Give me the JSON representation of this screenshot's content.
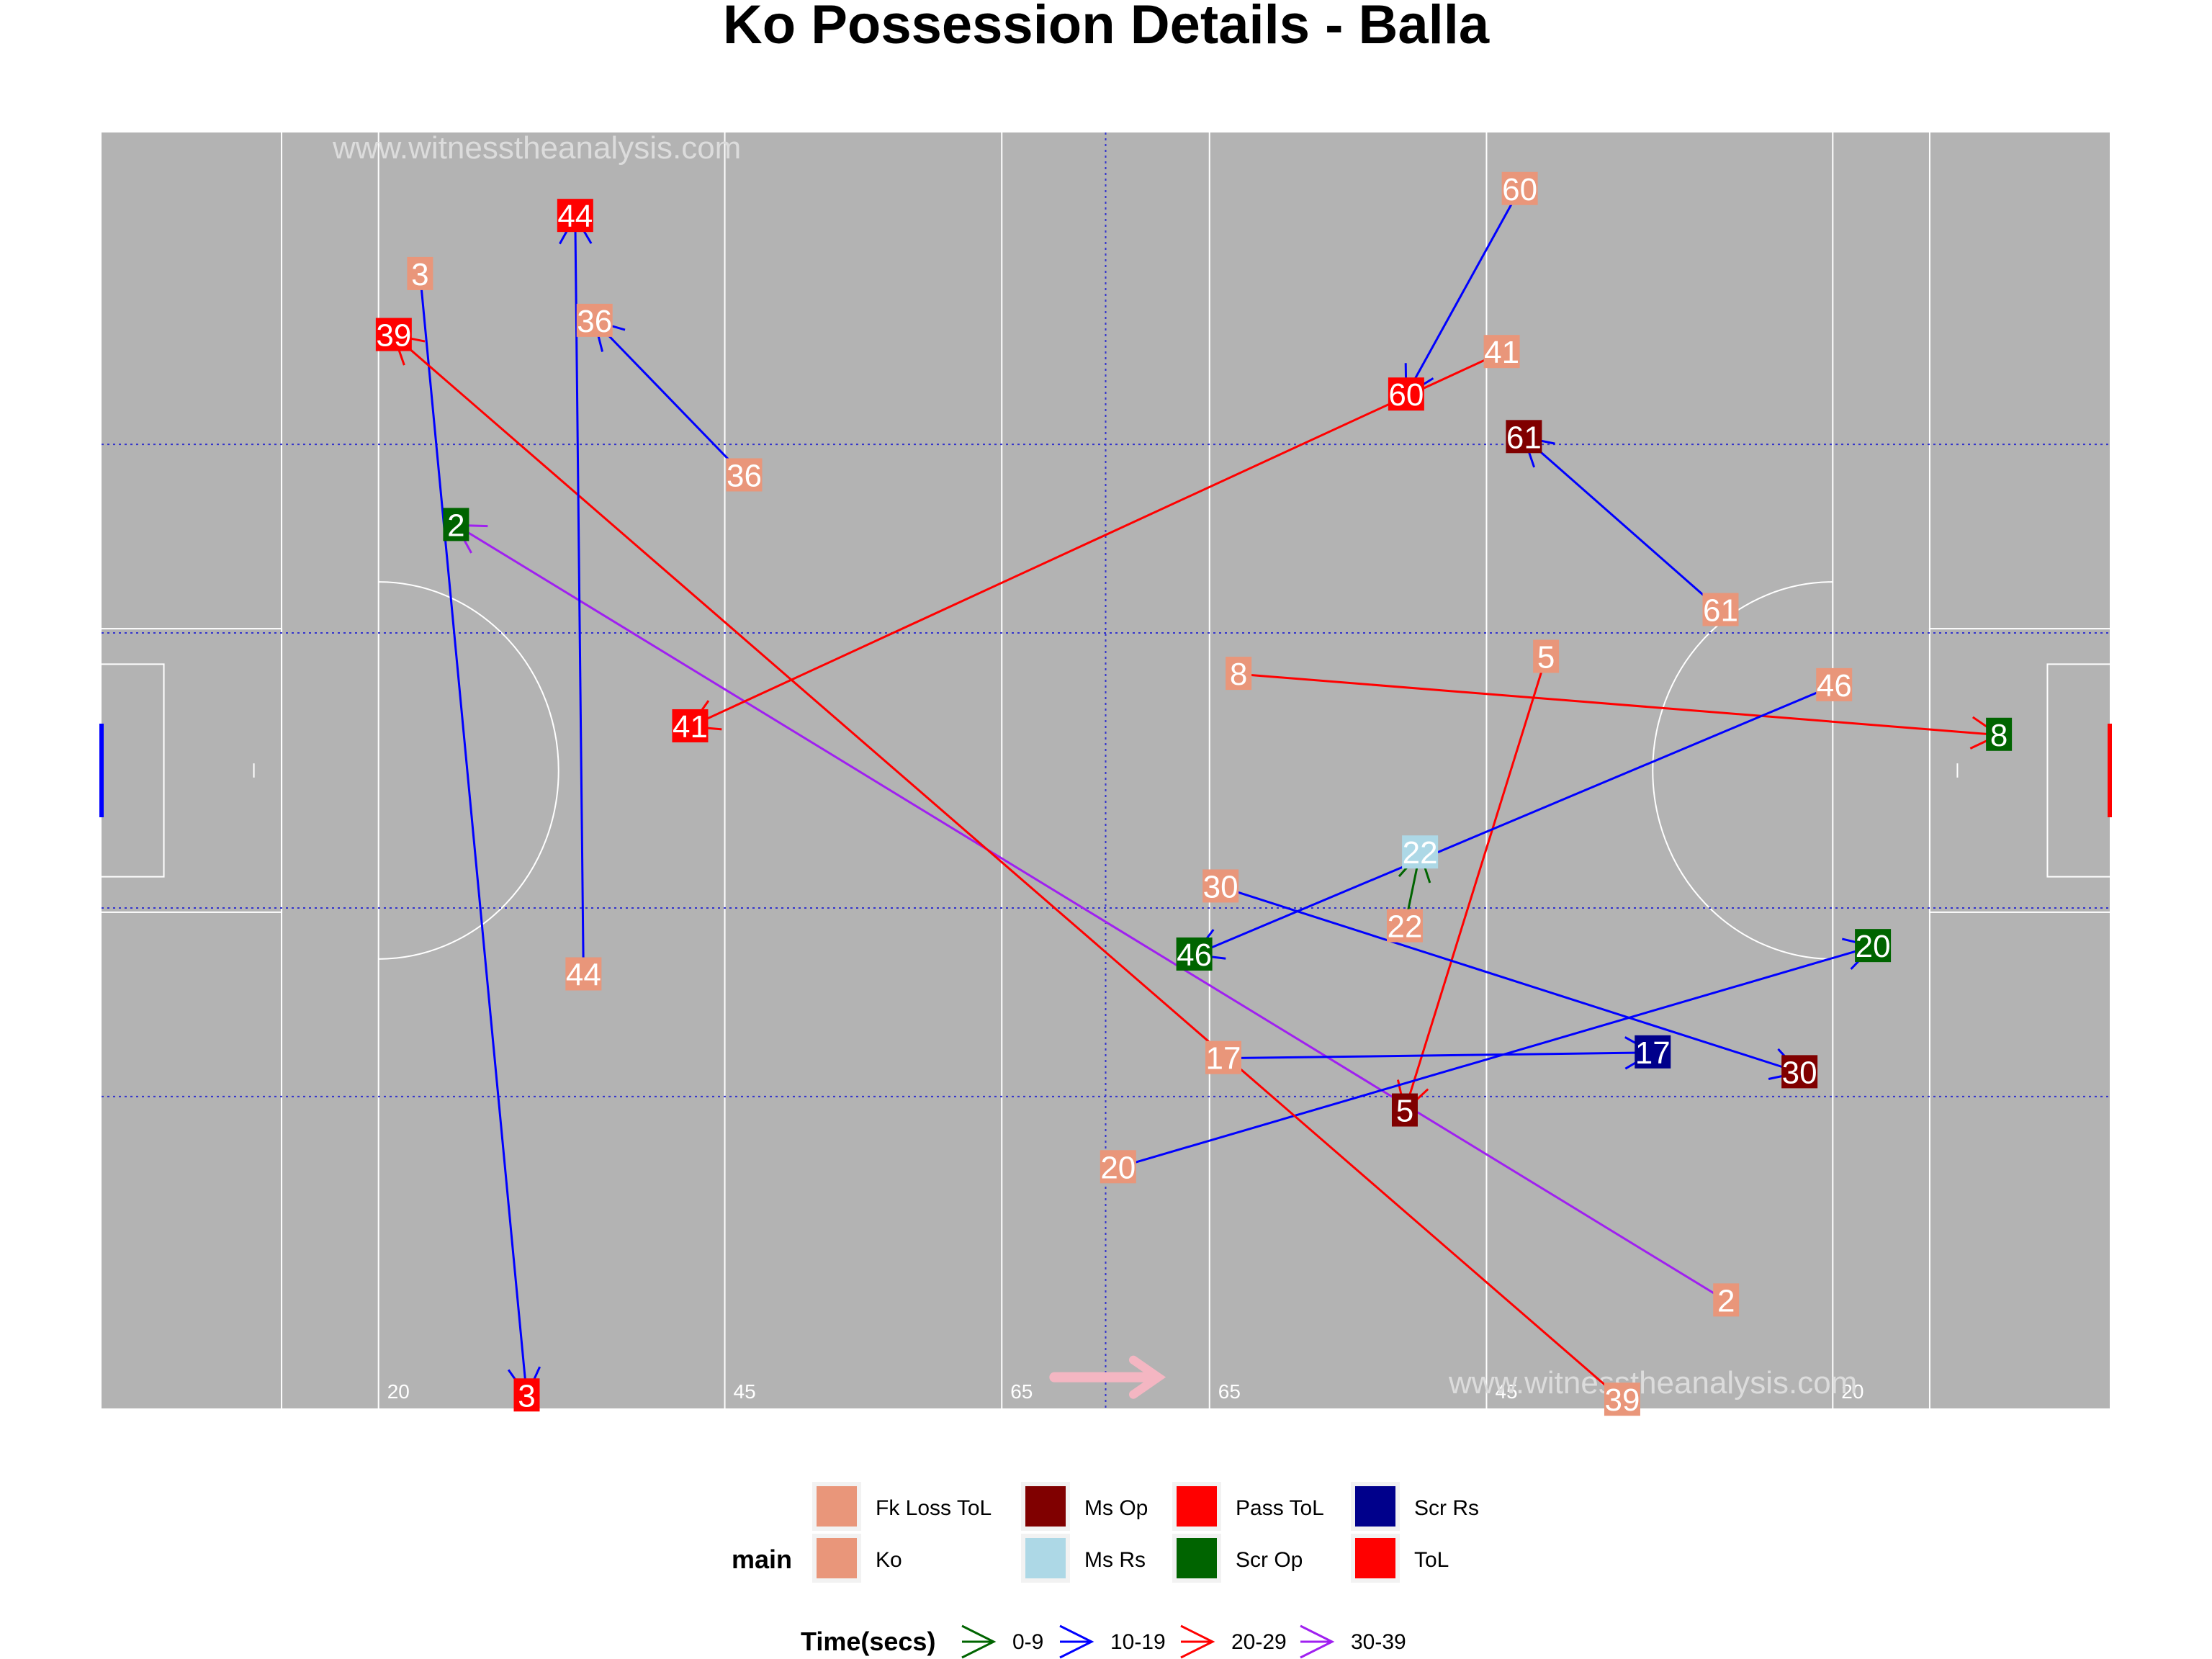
{
  "title": "Ko Possession Details - Balla",
  "watermark": "www.witnesstheanalysis.com",
  "colors": {
    "pitch": "#b3b3b3",
    "pitch_lines": "#ffffff",
    "zone_lines": "#3333cc",
    "direction_arrow": "#f4b6c2",
    "left_goal": "#0000ff",
    "right_goal": "#ff0000"
  },
  "chart_data": {
    "type": "scatter",
    "x_range": [
      0,
      145
    ],
    "y_range": [
      0,
      90
    ],
    "pitch_ticks": [
      "20",
      "45",
      "65",
      "65",
      "45",
      "20"
    ],
    "legend_title": "main",
    "categories": [
      {
        "name": "Fk Loss ToL",
        "color": "#e9967a"
      },
      {
        "name": "Ko",
        "color": "#e9967a"
      },
      {
        "name": "Ms Op",
        "color": "#800000"
      },
      {
        "name": "Ms Rs",
        "color": "#add8e6"
      },
      {
        "name": "Pass ToL",
        "color": "#ff0000"
      },
      {
        "name": "Scr Op",
        "color": "#006400"
      },
      {
        "name": "Scr Rs",
        "color": "#00008b"
      },
      {
        "name": "ToL",
        "color": "#ff0000"
      }
    ],
    "time_legend_title": "Time(secs)",
    "time_bins": [
      {
        "name": "0-9",
        "color": "#006400"
      },
      {
        "name": "10-19",
        "color": "#0000ff"
      },
      {
        "name": "20-29",
        "color": "#ff0000"
      },
      {
        "name": "30-39",
        "color": "#a020f0"
      }
    ],
    "possessions": [
      {
        "label": "2",
        "start": [
          25.6,
          62.3
        ],
        "end": [
          117.3,
          7.6
        ],
        "end_type": "Scr Op",
        "time_bin": "30-39"
      },
      {
        "label": "3",
        "start": [
          30.7,
          0.9
        ],
        "end": [
          23.0,
          80.0
        ],
        "end_type": "ToL",
        "time_bin": "10-19"
      },
      {
        "label": "5",
        "start": [
          94.1,
          21.0
        ],
        "end": [
          104.3,
          53.0
        ],
        "end_type": "Ms Op",
        "time_bin": "20-29"
      },
      {
        "label": "8",
        "start": [
          137.0,
          47.5
        ],
        "end": [
          82.1,
          51.8
        ],
        "end_type": "Scr Op",
        "time_bin": "20-29"
      },
      {
        "label": "17",
        "start": [
          112.0,
          25.1
        ],
        "end": [
          81.0,
          24.7
        ],
        "end_type": "Scr Rs",
        "time_bin": "10-19"
      },
      {
        "label": "20",
        "start": [
          127.9,
          32.6
        ],
        "end": [
          73.4,
          17.0
        ],
        "end_type": "Scr Op",
        "time_bin": "10-19"
      },
      {
        "label": "22",
        "start": [
          95.2,
          39.2
        ],
        "end": [
          94.1,
          34.0
        ],
        "end_type": "Ms Rs",
        "time_bin": "0-9"
      },
      {
        "label": "30",
        "start": [
          122.6,
          23.7
        ],
        "end": [
          80.8,
          36.8
        ],
        "end_type": "Ms Op",
        "time_bin": "10-19"
      },
      {
        "label": "36",
        "start": [
          35.6,
          76.7
        ],
        "end": [
          46.4,
          65.8
        ],
        "end_type": "Ko",
        "time_bin": "10-19"
      },
      {
        "label": "39",
        "start": [
          21.1,
          75.7
        ],
        "end": [
          109.8,
          0.6
        ],
        "end_type": "ToL",
        "time_bin": "20-29"
      },
      {
        "label": "41",
        "start": [
          42.5,
          48.1
        ],
        "end": [
          101.1,
          74.5
        ],
        "end_type": "Pass ToL",
        "time_bin": "20-29"
      },
      {
        "label": "44",
        "start": [
          34.2,
          84.1
        ],
        "end": [
          34.8,
          30.6
        ],
        "end_type": "ToL",
        "time_bin": "10-19"
      },
      {
        "label": "46",
        "start": [
          78.9,
          32.0
        ],
        "end": [
          125.1,
          51.0
        ],
        "end_type": "Scr Op",
        "time_bin": "10-19"
      },
      {
        "label": "60",
        "start": [
          94.2,
          71.5
        ],
        "end": [
          102.4,
          86.0
        ],
        "end_type": "ToL",
        "time_bin": "10-19"
      },
      {
        "label": "61",
        "start": [
          102.7,
          68.5
        ],
        "end": [
          116.9,
          56.3
        ],
        "end_type": "Ms Op",
        "time_bin": "10-19"
      }
    ]
  }
}
